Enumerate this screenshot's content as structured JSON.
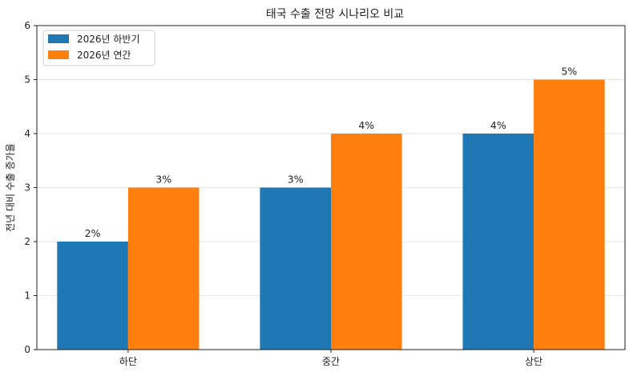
{
  "chart_data": {
    "type": "bar",
    "title": "태국 수출 전망 시나리오 비교",
    "xlabel": "",
    "ylabel": "전년 대비 수출 증가율",
    "categories": [
      "하단",
      "중간",
      "상단"
    ],
    "series": [
      {
        "name": "2026년 하반기",
        "values": [
          2,
          3,
          4
        ],
        "labels": [
          "2%",
          "3%",
          "4%"
        ],
        "color": "#1f77b4"
      },
      {
        "name": "2026년 연간",
        "values": [
          3,
          4,
          5
        ],
        "labels": [
          "3%",
          "4%",
          "5%"
        ],
        "color": "#ff7f0e"
      }
    ],
    "ylim": [
      0,
      6
    ],
    "yticks": [
      "0",
      "1",
      "2",
      "3",
      "4",
      "5",
      "6"
    ],
    "grid": "horizontal",
    "legend": "top-left"
  }
}
